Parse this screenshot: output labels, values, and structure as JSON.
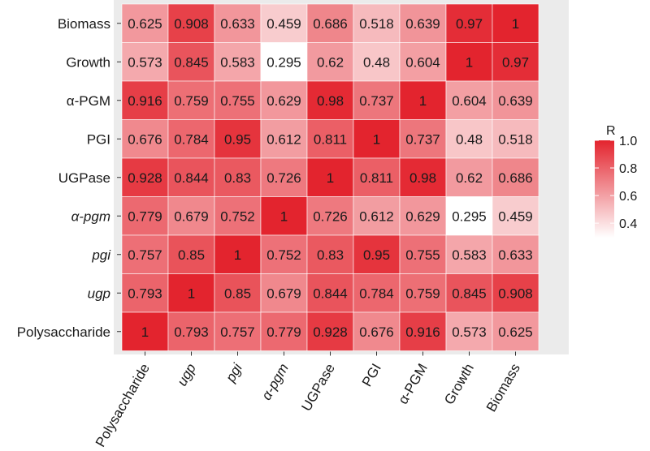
{
  "chart_data": {
    "type": "heatmap",
    "title": "",
    "xlabel": "",
    "ylabel": "",
    "x_categories": [
      "Polysaccharide",
      "ugp",
      "pgi",
      "α-pgm",
      "UGPase",
      "PGI",
      "α-PGM",
      "Growth",
      "Biomass"
    ],
    "y_categories_top_to_bottom": [
      "Biomass",
      "Growth",
      "α-PGM",
      "PGI",
      "UGPase",
      "α-pgm",
      "pgi",
      "ugp",
      "Polysaccharide"
    ],
    "italic_labels": [
      "ugp",
      "pgi",
      "α-pgm"
    ],
    "values": [
      [
        "0.625",
        "0.908",
        "0.633",
        "0.459",
        "0.686",
        "0.518",
        "0.639",
        "0.97",
        "1"
      ],
      [
        "0.573",
        "0.845",
        "0.583",
        "0.295",
        "0.62",
        "0.48",
        "0.604",
        "1",
        "0.97"
      ],
      [
        "0.916",
        "0.759",
        "0.755",
        "0.629",
        "0.98",
        "0.737",
        "1",
        "0.604",
        "0.639"
      ],
      [
        "0.676",
        "0.784",
        "0.95",
        "0.612",
        "0.811",
        "1",
        "0.737",
        "0.48",
        "0.518"
      ],
      [
        "0.928",
        "0.844",
        "0.83",
        "0.726",
        "1",
        "0.811",
        "0.98",
        "0.62",
        "0.686"
      ],
      [
        "0.779",
        "0.679",
        "0.752",
        "1",
        "0.726",
        "0.612",
        "0.629",
        "0.295",
        "0.459"
      ],
      [
        "0.757",
        "0.85",
        "1",
        "0.752",
        "0.83",
        "0.95",
        "0.755",
        "0.583",
        "0.633"
      ],
      [
        "0.793",
        "1",
        "0.85",
        "0.679",
        "0.844",
        "0.784",
        "0.759",
        "0.845",
        "0.908"
      ],
      [
        "1",
        "0.793",
        "0.757",
        "0.779",
        "0.928",
        "0.676",
        "0.916",
        "0.573",
        "0.625"
      ]
    ],
    "color_scale": {
      "low": "#ffffff",
      "high": "#e3242e",
      "min": 0.295,
      "max": 1.0
    },
    "legend": {
      "title": "R",
      "ticks": [
        "1.0",
        "0.8",
        "0.6",
        "0.4"
      ],
      "tick_values": [
        1.0,
        0.8,
        0.6,
        0.4
      ],
      "placement": "right"
    },
    "background": "#ebebeb"
  }
}
